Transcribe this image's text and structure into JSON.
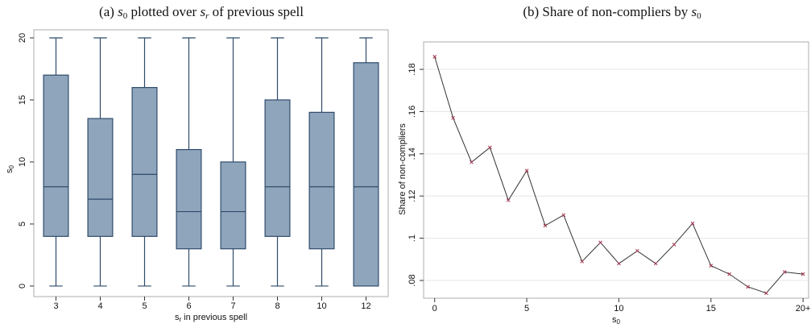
{
  "chart_data": [
    {
      "type": "box",
      "title": [
        "(a) ",
        "s",
        "0",
        " plotted over ",
        "s",
        "r",
        " of previous spell"
      ],
      "x_label": [
        "s",
        "r",
        " in previous spell"
      ],
      "y_label": [
        "s",
        "0"
      ],
      "categories": [
        "3",
        "4",
        "5",
        "6",
        "7",
        "8",
        "10",
        "12"
      ],
      "boxes": [
        {
          "min": 0,
          "q1": 4,
          "median": 8,
          "q3": 17,
          "max": 20
        },
        {
          "min": 0,
          "q1": 4,
          "median": 7,
          "q3": 13.5,
          "max": 20
        },
        {
          "min": 0,
          "q1": 4,
          "median": 9,
          "q3": 16,
          "max": 20
        },
        {
          "min": 0,
          "q1": 3,
          "median": 6,
          "q3": 11,
          "max": 20
        },
        {
          "min": 0,
          "q1": 3,
          "median": 6,
          "q3": 10,
          "max": 20
        },
        {
          "min": 0,
          "q1": 4,
          "median": 8,
          "q3": 15,
          "max": 20
        },
        {
          "min": 0,
          "q1": 3,
          "median": 8,
          "q3": 14,
          "max": 20
        },
        {
          "min": 0,
          "q1": 0,
          "median": 8,
          "q3": 18,
          "max": 20
        }
      ],
      "color": "#8fa5bb",
      "ylim": [
        -0.85,
        20.65
      ],
      "yticks": [
        0,
        5,
        10,
        15,
        20
      ],
      "grid": false
    },
    {
      "type": "line",
      "title": [
        "(b) Share of non-compliers by ",
        "s",
        "0"
      ],
      "x_label": [
        "s",
        "0"
      ],
      "y_label": "Share of non-compliers",
      "x": [
        0,
        1,
        2,
        3,
        4,
        5,
        6,
        7,
        8,
        9,
        10,
        11,
        12,
        13,
        14,
        15,
        16,
        17,
        18,
        19,
        20
      ],
      "values": [
        0.186,
        0.157,
        0.136,
        0.143,
        0.118,
        0.132,
        0.106,
        0.111,
        0.089,
        0.098,
        0.088,
        0.094,
        0.088,
        0.097,
        0.107,
        0.087,
        0.083,
        0.077,
        0.074,
        0.084,
        0.083
      ],
      "color": "#333333",
      "marker_color": "#a0334d",
      "xlim": [
        -0.6,
        20.3
      ],
      "xticks": [
        0,
        5,
        10,
        15,
        {
          "value": 20,
          "label": "20+"
        }
      ],
      "ylim": [
        0.0716,
        0.193
      ],
      "yticks": [
        {
          "value": 0.08,
          "label": ".08"
        },
        {
          "value": 0.1,
          "label": ".1"
        },
        {
          "value": 0.12,
          "label": ".12"
        },
        {
          "value": 0.14,
          "label": ".14"
        },
        {
          "value": 0.16,
          "label": ".16"
        },
        {
          "value": 0.18,
          "label": ".18"
        }
      ],
      "grid": true
    }
  ]
}
